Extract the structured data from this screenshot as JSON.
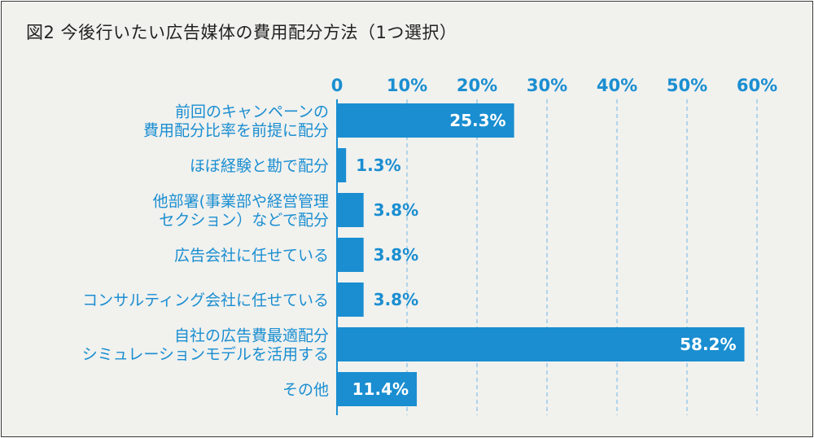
{
  "chart_data": {
    "type": "bar",
    "orientation": "horizontal",
    "title": "図2 今後行いたい広告媒体の費用配分方法（1つ選択）",
    "categories": [
      [
        "前回のキャンペーンの",
        "費用配分比率を前提に配分"
      ],
      [
        "ほぼ経験と勘で配分"
      ],
      [
        "他部署(事業部や経営管理",
        "セクション）などで配分"
      ],
      [
        "広告会社に任せている"
      ],
      [
        "コンサルティング会社に任せている"
      ],
      [
        "自社の広告費最適配分",
        "シミュレーションモデルを活用する"
      ],
      [
        "その他"
      ]
    ],
    "values": [
      25.3,
      1.3,
      3.8,
      3.8,
      3.8,
      58.2,
      11.4
    ],
    "value_labels": [
      "25.3%",
      "1.3%",
      "3.8%",
      "3.8%",
      "3.8%",
      "58.2%",
      "11.4%"
    ],
    "xlim": [
      0,
      60
    ],
    "x_ticks": [
      0,
      10,
      20,
      30,
      40,
      50,
      60
    ],
    "x_tick_labels": [
      "0",
      "10%",
      "20%",
      "30%",
      "40%",
      "50%",
      "60%"
    ],
    "grid": true,
    "axis_position": "top",
    "colors": {
      "bar": "#1a8ed1",
      "label": "#1a8ed1",
      "grid": "#8fc5e6",
      "axis": "#1a8ed1",
      "inside_text": "#ffffff"
    }
  }
}
